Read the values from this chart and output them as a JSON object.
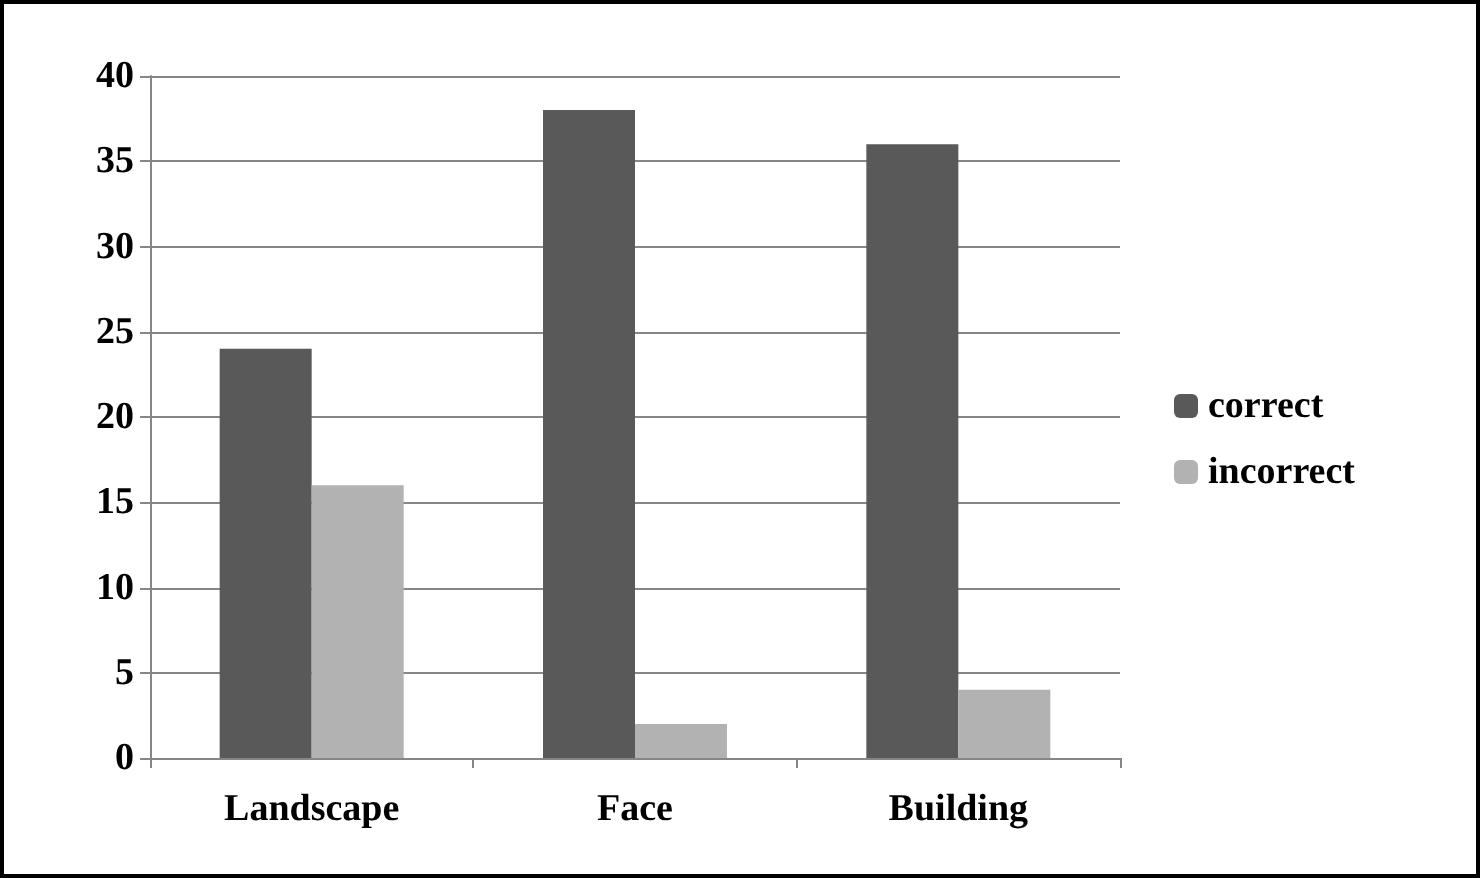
{
  "chart_data": {
    "type": "bar",
    "categories": [
      "Landscape",
      "Face",
      "Building"
    ],
    "series": [
      {
        "name": "correct",
        "color": "#595959",
        "values": [
          24,
          38,
          36
        ]
      },
      {
        "name": "incorrect",
        "color": "#b2b2b2",
        "values": [
          16,
          2,
          4
        ]
      }
    ],
    "ylim": [
      0,
      40
    ],
    "yticks": [
      0,
      5,
      10,
      15,
      20,
      25,
      30,
      35,
      40
    ],
    "grid": "y",
    "legend": "right"
  }
}
